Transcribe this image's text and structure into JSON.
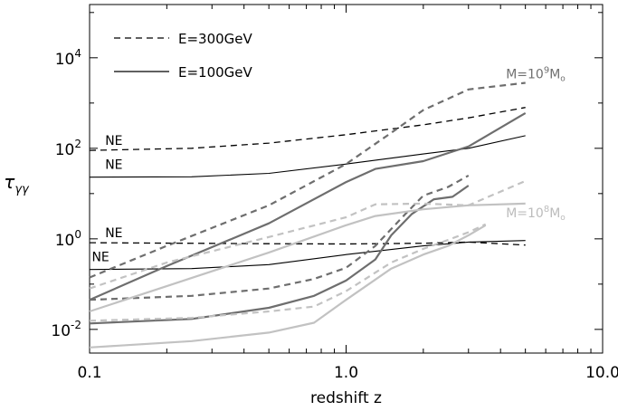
{
  "chart_data": {
    "type": "line",
    "xlabel": "redshift  z",
    "ylabel": "τ",
    "ylabel_sub": "γγ",
    "xscale": "log",
    "yscale": "log",
    "xlim": [
      0.1,
      10.0
    ],
    "ylim": [
      0.003,
      150000
    ],
    "x_ticks": [
      {
        "value": 0.1,
        "label": "0.1"
      },
      {
        "value": 1.0,
        "label": "1.0"
      },
      {
        "value": 10.0,
        "label": "10.0"
      }
    ],
    "y_ticks": [
      {
        "value": 0.01,
        "base": "10",
        "exp": "-2"
      },
      {
        "value": 1,
        "base": "10",
        "exp": "0"
      },
      {
        "value": 100,
        "base": "10",
        "exp": "2"
      },
      {
        "value": 10000,
        "base": "10",
        "exp": "4"
      }
    ],
    "legend": [
      {
        "label": "E=300GeV",
        "dash": "dashed"
      },
      {
        "label": "E=100GeV",
        "dash": "solid"
      }
    ],
    "annotations": [
      {
        "id": "mass-high",
        "text": "M=10",
        "sup": "9",
        "suffix": "M",
        "sub": "o",
        "color": "#707070",
        "x": 4.2,
        "y": 3500
      },
      {
        "id": "mass-low",
        "text": "M=10",
        "sup": "8",
        "suffix": "M",
        "sub": "o",
        "color": "#bcbcbc",
        "x": 4.2,
        "y": 3.0
      }
    ],
    "ne_labels": [
      {
        "text": "NE",
        "x": 0.115,
        "y": 120
      },
      {
        "text": "NE",
        "x": 0.115,
        "y": 35
      },
      {
        "text": "NE",
        "x": 0.115,
        "y": 1.1
      },
      {
        "text": "NE",
        "x": 0.102,
        "y": 0.32
      }
    ],
    "series": [
      {
        "style": "dashed",
        "color": "#000000",
        "width": 1.3,
        "points": [
          [
            0.1,
            90
          ],
          [
            0.25,
            100
          ],
          [
            0.5,
            130
          ],
          [
            1.0,
            200
          ],
          [
            2.0,
            330
          ],
          [
            3.0,
            470
          ],
          [
            5.0,
            800
          ]
        ]
      },
      {
        "style": "solid",
        "color": "#000000",
        "width": 1.1,
        "points": [
          [
            0.1,
            23
          ],
          [
            0.25,
            23.5
          ],
          [
            0.5,
            28
          ],
          [
            1.0,
            45
          ],
          [
            2.0,
            75
          ],
          [
            3.0,
            100
          ],
          [
            5.0,
            190
          ]
        ]
      },
      {
        "style": "dashed",
        "color": "#000000",
        "width": 1.3,
        "points": [
          [
            0.1,
            0.82
          ],
          [
            0.5,
            0.78
          ],
          [
            1.0,
            0.77
          ],
          [
            2.0,
            0.8
          ],
          [
            3.0,
            0.85
          ],
          [
            5.0,
            0.73
          ]
        ]
      },
      {
        "style": "solid",
        "color": "#000000",
        "width": 1.1,
        "points": [
          [
            0.1,
            0.21
          ],
          [
            0.25,
            0.22
          ],
          [
            0.5,
            0.27
          ],
          [
            1.0,
            0.45
          ],
          [
            2.0,
            0.7
          ],
          [
            3.0,
            0.85
          ],
          [
            5.0,
            0.92
          ]
        ]
      },
      {
        "style": "dashed",
        "color": "#6e6e6e",
        "width": 2.2,
        "points": [
          [
            0.1,
            0.14
          ],
          [
            0.2,
            0.7
          ],
          [
            0.5,
            5.5
          ],
          [
            1.0,
            45
          ],
          [
            1.5,
            220
          ],
          [
            2.0,
            700
          ],
          [
            3.0,
            2000
          ],
          [
            5.0,
            2800
          ]
        ]
      },
      {
        "style": "solid",
        "color": "#6e6e6e",
        "width": 2.2,
        "points": [
          [
            0.1,
            0.045
          ],
          [
            0.2,
            0.25
          ],
          [
            0.5,
            2.2
          ],
          [
            1.0,
            18
          ],
          [
            1.3,
            35
          ],
          [
            2.0,
            52
          ],
          [
            3.0,
            110
          ],
          [
            5.0,
            600
          ]
        ]
      },
      {
        "style": "dashed",
        "color": "#6e6e6e",
        "width": 2.2,
        "points": [
          [
            0.1,
            0.045
          ],
          [
            0.25,
            0.055
          ],
          [
            0.5,
            0.08
          ],
          [
            0.75,
            0.13
          ],
          [
            1.0,
            0.23
          ],
          [
            1.3,
            0.7
          ],
          [
            1.7,
            3.5
          ],
          [
            2.0,
            9
          ],
          [
            2.5,
            14
          ],
          [
            3.0,
            25
          ]
        ]
      },
      {
        "style": "solid",
        "color": "#6e6e6e",
        "width": 2.2,
        "points": [
          [
            0.1,
            0.0135
          ],
          [
            0.25,
            0.017
          ],
          [
            0.5,
            0.03
          ],
          [
            0.75,
            0.055
          ],
          [
            1.0,
            0.12
          ],
          [
            1.3,
            0.35
          ],
          [
            1.5,
            1.2
          ],
          [
            1.8,
            3.5
          ],
          [
            2.2,
            7.5
          ],
          [
            2.6,
            8.5
          ],
          [
            3.0,
            15
          ]
        ]
      },
      {
        "style": "dashed",
        "color": "#c2c2c2",
        "width": 2.2,
        "points": [
          [
            0.1,
            0.08
          ],
          [
            0.2,
            0.3
          ],
          [
            0.5,
            1.1
          ],
          [
            1.0,
            3.0
          ],
          [
            1.3,
            5.8
          ],
          [
            2.0,
            6.0
          ],
          [
            3.0,
            5.5
          ],
          [
            5.0,
            19
          ]
        ]
      },
      {
        "style": "solid",
        "color": "#c2c2c2",
        "width": 2.2,
        "points": [
          [
            0.1,
            0.025
          ],
          [
            0.2,
            0.09
          ],
          [
            0.5,
            0.5
          ],
          [
            1.0,
            2.0
          ],
          [
            1.3,
            3.2
          ],
          [
            2.0,
            4.5
          ],
          [
            3.0,
            5.5
          ],
          [
            5.0,
            6.0
          ]
        ]
      },
      {
        "style": "dashed",
        "color": "#c2c2c2",
        "width": 2.2,
        "points": [
          [
            0.1,
            0.0155
          ],
          [
            0.25,
            0.018
          ],
          [
            0.5,
            0.025
          ],
          [
            0.75,
            0.032
          ],
          [
            1.0,
            0.07
          ],
          [
            1.5,
            0.3
          ],
          [
            2.0,
            0.6
          ],
          [
            2.5,
            0.95
          ],
          [
            3.0,
            1.4
          ],
          [
            3.5,
            2.1
          ]
        ]
      },
      {
        "style": "solid",
        "color": "#c2c2c2",
        "width": 2.2,
        "points": [
          [
            0.1,
            0.004
          ],
          [
            0.25,
            0.0055
          ],
          [
            0.5,
            0.0085
          ],
          [
            0.75,
            0.014
          ],
          [
            1.0,
            0.045
          ],
          [
            1.5,
            0.22
          ],
          [
            2.0,
            0.45
          ],
          [
            2.5,
            0.7
          ],
          [
            3.0,
            1.2
          ],
          [
            3.5,
            2.0
          ]
        ]
      }
    ]
  }
}
